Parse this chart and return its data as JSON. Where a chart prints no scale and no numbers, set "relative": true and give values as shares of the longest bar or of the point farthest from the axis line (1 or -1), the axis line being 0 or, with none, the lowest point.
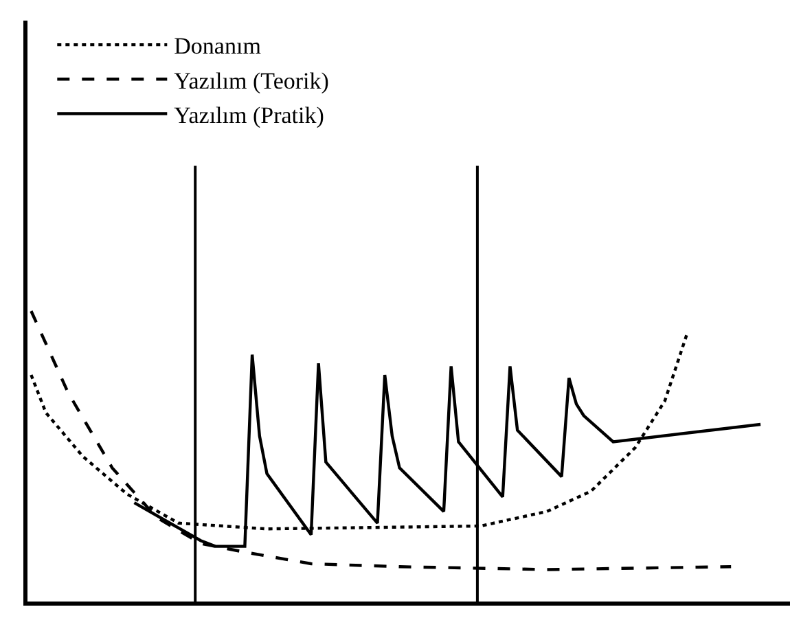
{
  "chart_data": {
    "type": "line",
    "relative": true,
    "tick_labels": false,
    "legend": "top left",
    "marker": "none",
    "categories": [
      null,
      null,
      null,
      null,
      null,
      null,
      null,
      null,
      null,
      null,
      null,
      null,
      null,
      null,
      null,
      null,
      null,
      null,
      null,
      null,
      null,
      null,
      null,
      null,
      null,
      null,
      null,
      null,
      null,
      null,
      null,
      null,
      null,
      null,
      null,
      null,
      null,
      null,
      null,
      null,
      null,
      null,
      null,
      null,
      null,
      null,
      null,
      null,
      null,
      null,
      null,
      null,
      null,
      null,
      null,
      null,
      null,
      null,
      null,
      null,
      null,
      null,
      null,
      null,
      null,
      null,
      null,
      null,
      null,
      null,
      null,
      null,
      null,
      null,
      null,
      null,
      null,
      null,
      null,
      null,
      null,
      null,
      null,
      null,
      null,
      null,
      null,
      null,
      null,
      null,
      null,
      null,
      null,
      null,
      null,
      null,
      null,
      null,
      null,
      null,
      null
    ],
    "series": [
      {
        "name": "Donanım",
        "color": "#000000",
        "line_style": "dotted",
        "values": [
          0.78,
          null,
          0.65,
          null,
          null,
          null,
          null,
          0.5,
          null,
          null,
          null,
          null,
          null,
          0.37,
          null,
          null,
          null,
          null,
          null,
          null,
          0.27,
          null,
          null,
          null,
          null,
          null,
          null,
          null,
          null,
          null,
          null,
          null,
          0.25,
          null,
          null,
          null,
          null,
          null,
          null,
          null,
          null,
          null,
          null,
          null,
          null,
          null,
          null,
          null,
          null,
          null,
          null,
          null,
          null,
          null,
          null,
          null,
          null,
          null,
          null,
          null,
          null,
          0.26,
          null,
          null,
          null,
          null,
          null,
          null,
          null,
          null,
          0.31,
          null,
          null,
          null,
          null,
          null,
          0.38,
          null,
          null,
          null,
          null,
          null,
          0.53,
          null,
          null,
          null,
          0.69,
          null,
          null,
          0.92,
          null,
          null,
          null,
          null,
          null,
          null,
          null,
          null,
          null,
          null,
          null
        ]
      },
      {
        "name": "Yazılım (Teorik)",
        "color": "#000000",
        "line_style": "dashed",
        "values": [
          1.0,
          null,
          null,
          null,
          null,
          0.72,
          null,
          null,
          null,
          null,
          null,
          0.46,
          null,
          null,
          null,
          null,
          null,
          0.29,
          null,
          null,
          null,
          null,
          null,
          0.2,
          null,
          null,
          null,
          null,
          null,
          0.17,
          null,
          null,
          null,
          null,
          null,
          null,
          null,
          null,
          0.13,
          null,
          null,
          null,
          null,
          null,
          null,
          null,
          null,
          null,
          null,
          null,
          0.12,
          null,
          null,
          null,
          null,
          null,
          null,
          null,
          null,
          null,
          null,
          null,
          null,
          null,
          null,
          null,
          null,
          null,
          null,
          null,
          0.11,
          null,
          null,
          null,
          null,
          null,
          null,
          null,
          null,
          null,
          null,
          null,
          null,
          null,
          null,
          null,
          null,
          null,
          null,
          null,
          null,
          null,
          null,
          null,
          null,
          0.12,
          null,
          null,
          null,
          null,
          null
        ]
      },
      {
        "name": "Yazılım (Pratik)",
        "color": "#000000",
        "line_style": "solid",
        "values": [
          null,
          null,
          null,
          null,
          null,
          null,
          null,
          null,
          null,
          null,
          null,
          null,
          null,
          null,
          0.34,
          null,
          null,
          null,
          null,
          null,
          null,
          null,
          null,
          0.21,
          null,
          0.19,
          null,
          null,
          null,
          0.19,
          0.85,
          0.57,
          0.44,
          null,
          null,
          null,
          null,
          null,
          0.23,
          0.82,
          0.48,
          null,
          null,
          null,
          null,
          null,
          null,
          0.27,
          0.78,
          0.57,
          0.46,
          null,
          null,
          null,
          null,
          null,
          0.31,
          0.81,
          0.55,
          null,
          null,
          null,
          null,
          null,
          0.36,
          0.81,
          0.59,
          null,
          null,
          null,
          null,
          null,
          0.43,
          0.77,
          0.68,
          0.64,
          null,
          null,
          null,
          0.55,
          null,
          null,
          null,
          null,
          null,
          null,
          null,
          null,
          null,
          null,
          null,
          null,
          null,
          null,
          null,
          null,
          null,
          null,
          null,
          0.61,
          null
        ]
      }
    ]
  }
}
